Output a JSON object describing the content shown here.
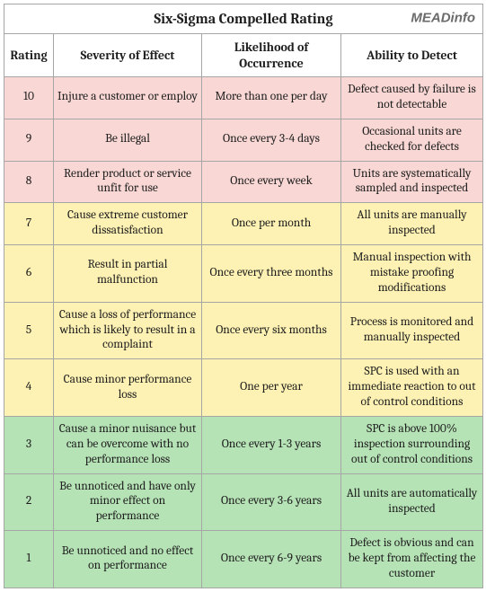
{
  "title": "Six-Sigma Compelled Rating",
  "brand": "MEADinfo",
  "columns": {
    "rating": "Rating",
    "severity": "Severity of Effect",
    "likelihood": "Likelihood of Occurrence",
    "detect": "Ability to Detect"
  },
  "band_colors": {
    "high": "#f8d7d4",
    "mid": "#fdf2b3",
    "low": "#b6e3b6"
  },
  "rows": [
    {
      "rating": "10",
      "severity": "Injure a customer or employ",
      "likelihood": "More than one per day",
      "detect": "Defect caused by failure is not detectable",
      "band": "high"
    },
    {
      "rating": "9",
      "severity": "Be illegal",
      "likelihood": "Once every 3-4 days",
      "detect": "Occasional units are checked for defects",
      "band": "high"
    },
    {
      "rating": "8",
      "severity": "Render product or service unfit for use",
      "likelihood": "Once every week",
      "detect": "Units are systematically sampled and inspected",
      "band": "high"
    },
    {
      "rating": "7",
      "severity": "Cause extreme customer dissatisfaction",
      "likelihood": "Once per month",
      "detect": "All units are manually inspected",
      "band": "mid"
    },
    {
      "rating": "6",
      "severity": "Result in partial malfunction",
      "likelihood": "Once every three months",
      "detect": "Manual inspection with mistake proofing modifications",
      "band": "mid"
    },
    {
      "rating": "5",
      "severity": "Cause a loss of performance which is likely to result in a complaint",
      "likelihood": "Once every six months",
      "detect": "Process is monitored and manually inspected",
      "band": "mid"
    },
    {
      "rating": "4",
      "severity": "Cause minor performance loss",
      "likelihood": "One per year",
      "detect": "SPC is used with an immediate reaction to out of control conditions",
      "band": "mid"
    },
    {
      "rating": "3",
      "severity": "Cause a minor nuisance but can be overcome with no performance loss",
      "likelihood": "Once every 1-3 years",
      "detect": "SPC is above 100% inspection surrounding out of control conditions",
      "band": "low"
    },
    {
      "rating": "2",
      "severity": "Be unnoticed and have only minor effect on performance",
      "likelihood": "Once every 3-6 years",
      "detect": "All units are automatically inspected",
      "band": "low"
    },
    {
      "rating": "1",
      "severity": "Be unnoticed and no effect on performance",
      "likelihood": "Once every 6-9 years",
      "detect": "Defect is obvious and can be kept from affecting the customer",
      "band": "low"
    }
  ]
}
